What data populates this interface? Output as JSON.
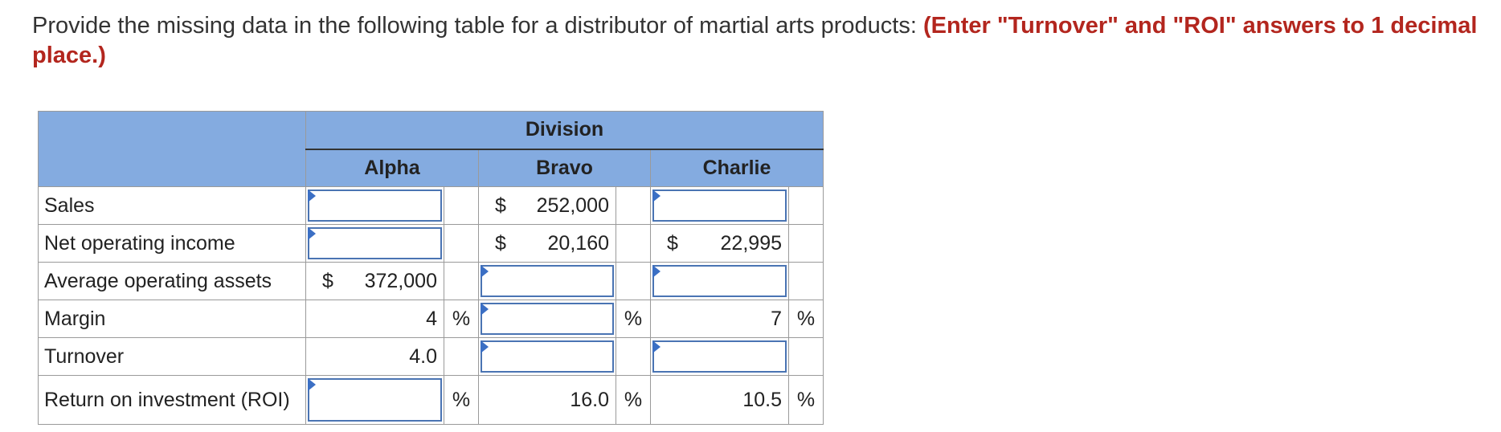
{
  "prompt": {
    "text": "Provide the missing data in the following table for a distributor of martial arts products: ",
    "emphasis": "(Enter \"Turnover\" and \"ROI\" answers to 1 decimal place.)"
  },
  "table": {
    "group_header": "Division",
    "columns": [
      "Alpha",
      "Bravo",
      "Charlie"
    ],
    "rows": [
      {
        "label": "Sales",
        "alpha": {
          "input": true,
          "value": ""
        },
        "bravo": {
          "prefix": "$",
          "value": "252,000"
        },
        "charlie": {
          "input": true,
          "value": ""
        }
      },
      {
        "label": "Net operating income",
        "alpha": {
          "input": true,
          "value": ""
        },
        "bravo": {
          "prefix": "$",
          "value": "20,160"
        },
        "charlie": {
          "prefix": "$",
          "value": "22,995"
        }
      },
      {
        "label": "Average operating assets",
        "alpha": {
          "prefix": "$",
          "value": "372,000"
        },
        "bravo": {
          "input": true,
          "value": ""
        },
        "charlie": {
          "input": true,
          "value": ""
        }
      },
      {
        "label": "Margin",
        "alpha": {
          "value": "4",
          "unit": "%"
        },
        "bravo": {
          "input": true,
          "value": "",
          "unit": "%"
        },
        "charlie": {
          "value": "7",
          "unit": "%"
        }
      },
      {
        "label": "Turnover",
        "alpha": {
          "value": "4.0"
        },
        "bravo": {
          "input": true,
          "value": ""
        },
        "charlie": {
          "input": true,
          "value": ""
        }
      },
      {
        "label": "Return on investment (ROI)",
        "alpha": {
          "input": true,
          "value": "",
          "unit": "%"
        },
        "bravo": {
          "value": "16.0",
          "unit": "%"
        },
        "charlie": {
          "value": "10.5",
          "unit": "%"
        }
      }
    ]
  }
}
